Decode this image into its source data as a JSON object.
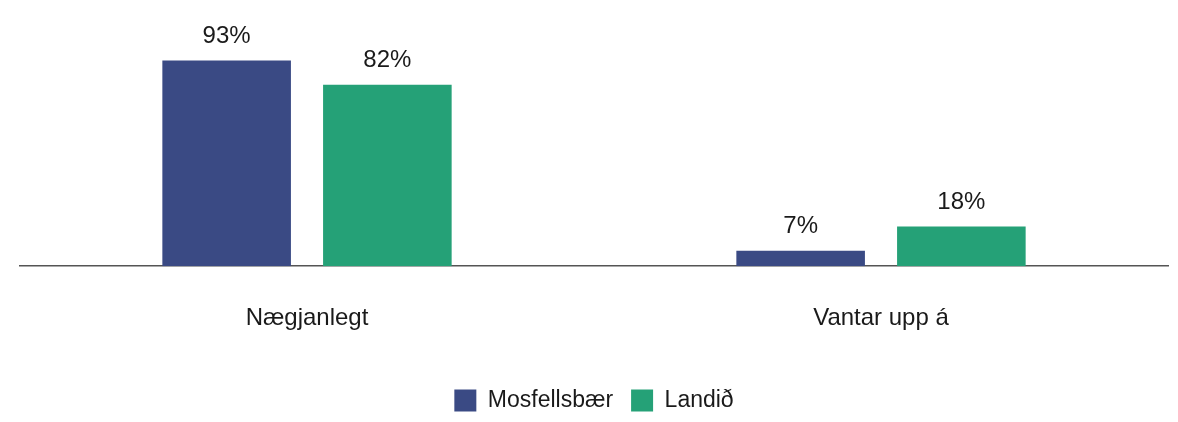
{
  "chart_data": {
    "type": "bar",
    "categories": [
      "Nægjanlegt",
      "Vantar upp á"
    ],
    "series": [
      {
        "name": "Mosfellsbær",
        "color": "#3a4a84",
        "values": [
          93,
          7
        ],
        "value_labels": [
          "93%",
          "7%"
        ]
      },
      {
        "name": "Landið",
        "color": "#25a177",
        "values": [
          82,
          18
        ],
        "value_labels": [
          "82%",
          "18%"
        ]
      }
    ],
    "grid": false,
    "legend": "bottom"
  }
}
